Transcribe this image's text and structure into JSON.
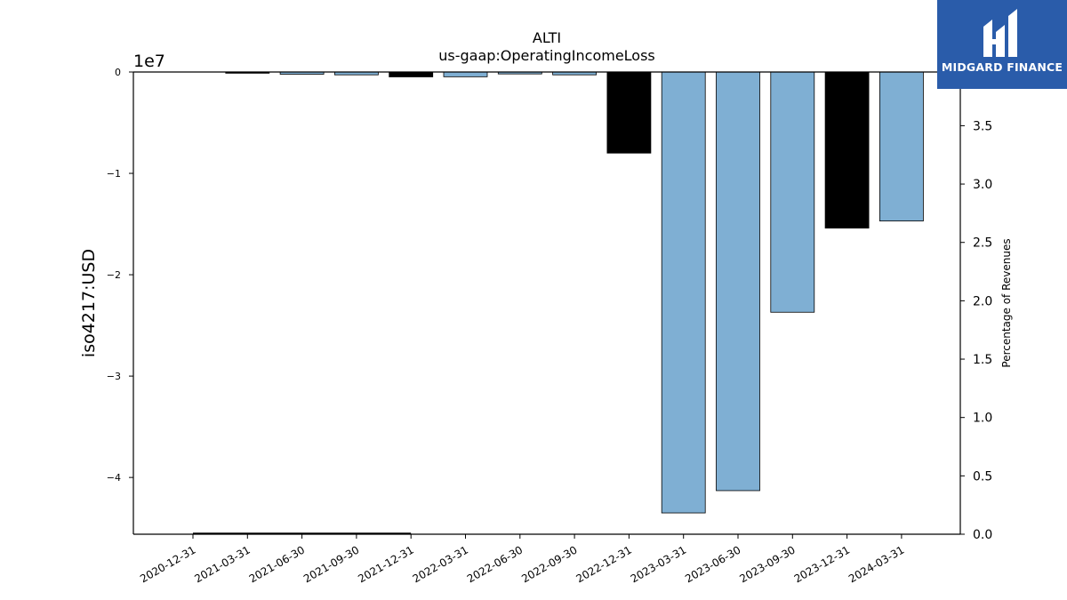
{
  "brand": {
    "name": "MIDGARD FINANCE",
    "icon": "midgard-m-logo-icon",
    "bg_color": "#2a5caa"
  },
  "chart_data": {
    "type": "bar",
    "title": "ALTI",
    "subtitle": "us-gaap:OperatingIncomeLoss",
    "ylabel": "iso4217:USD",
    "ylabel_right": "Percentage of Revenues",
    "y_offset_label": "1e7",
    "ylim": [
      -45600000,
      0
    ],
    "yticks": [
      0,
      -10000000,
      -20000000,
      -30000000,
      -40000000
    ],
    "ytick_labels": [
      "0",
      "−1",
      "−2",
      "−3",
      "−4"
    ],
    "ylim_right": [
      0,
      3.96
    ],
    "yticks_right": [
      0.0,
      0.5,
      1.0,
      1.5,
      2.0,
      2.5,
      3.0,
      3.5
    ],
    "ytick_labels_right": [
      "0.0",
      "0.5",
      "1.0",
      "1.5",
      "2.0",
      "2.5",
      "3.0",
      "3.5"
    ],
    "categories": [
      "2020-12-31",
      "2021-03-31",
      "2021-06-30",
      "2021-09-30",
      "2021-12-31",
      "2022-03-31",
      "2022-06-30",
      "2022-09-30",
      "2022-12-31",
      "2023-03-31",
      "2023-06-30",
      "2023-09-30",
      "2023-12-31",
      "2024-03-31"
    ],
    "values": [
      0,
      -120000,
      -220000,
      -280000,
      -480000,
      -470000,
      -190000,
      -280000,
      -8000000,
      -43500000,
      -41300000,
      -23700000,
      -15400000,
      -14700000
    ],
    "bar_colors": [
      "#000000",
      "#000000",
      "#7fafd3",
      "#7fafd3",
      "#000000",
      "#7fafd3",
      "#7fafd3",
      "#7fafd3",
      "#000000",
      "#7fafd3",
      "#7fafd3",
      "#7fafd3",
      "#000000",
      "#7fafd3"
    ],
    "line_series": {
      "axis": "right",
      "x": [
        "2020-12-31",
        "2021-03-31",
        "2021-06-30",
        "2021-09-30",
        "2021-12-31"
      ],
      "values": [
        0.0,
        0.0,
        0.0,
        0.0,
        0.0
      ],
      "color": "#000000"
    },
    "grid": false,
    "legend": "none"
  }
}
